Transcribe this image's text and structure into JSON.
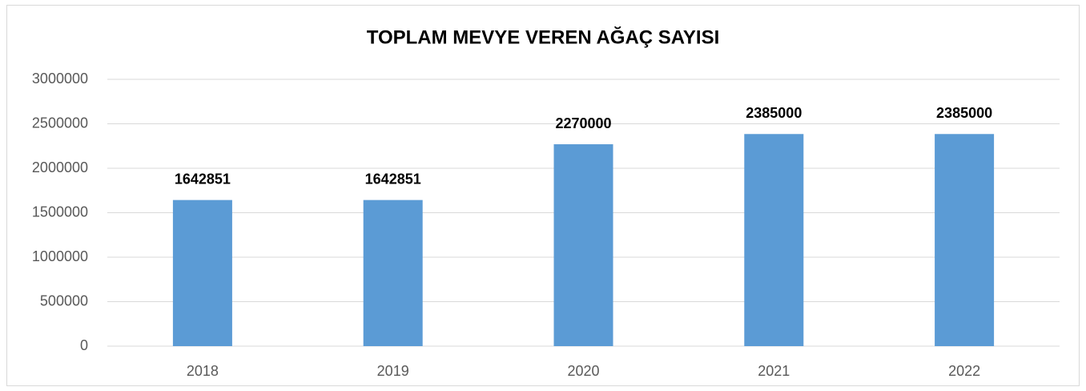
{
  "chart_data": {
    "type": "bar",
    "title": "TOPLAM MEVYE VEREN AĞAÇ SAYISI",
    "categories": [
      "2018",
      "2019",
      "2020",
      "2021",
      "2022"
    ],
    "values": [
      1642851,
      1642851,
      2270000,
      2385000,
      2385000
    ],
    "color": "#5b9bd5",
    "ylim": [
      0,
      3000000
    ],
    "yticks": [
      0,
      500000,
      1000000,
      1500000,
      2000000,
      2500000,
      3000000
    ],
    "grid": true
  }
}
